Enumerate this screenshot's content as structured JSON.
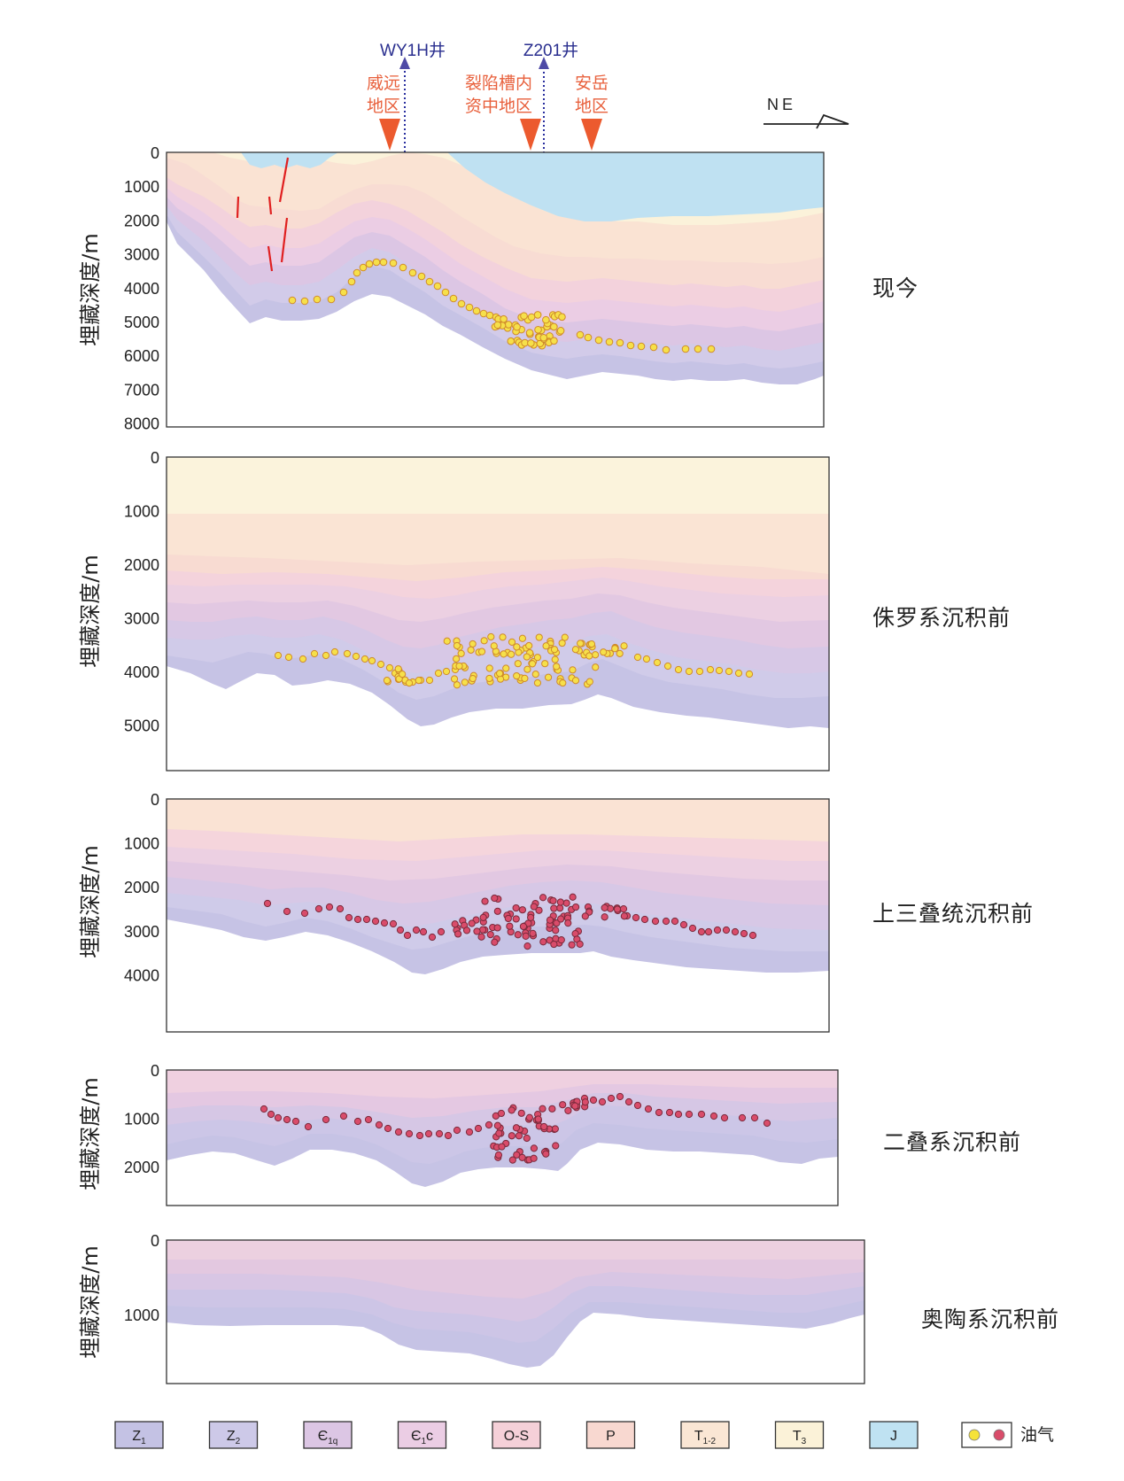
{
  "wells": [
    {
      "name": "WY1H井"
    },
    {
      "name": "Z201井"
    }
  ],
  "regions": [
    {
      "lines": [
        "威远",
        "地区"
      ]
    },
    {
      "lines": [
        "裂陷槽内",
        "资中地区"
      ]
    },
    {
      "lines": [
        "安岳",
        "地区"
      ]
    }
  ],
  "direction": "NE",
  "axis_label": "埋藏深度/m",
  "panels": [
    {
      "stage": "现今",
      "ticks": [
        "0",
        "1000",
        "2000",
        "3000",
        "4000",
        "5000",
        "6000",
        "7000",
        "8000"
      ]
    },
    {
      "stage": "侏罗系沉积前",
      "ticks": [
        "0",
        "1000",
        "2000",
        "3000",
        "4000",
        "5000"
      ]
    },
    {
      "stage": "上三叠统沉积前",
      "ticks": [
        "0",
        "1000",
        "2000",
        "3000",
        "4000"
      ]
    },
    {
      "stage": "二叠系沉积前",
      "ticks": [
        "0",
        "1000",
        "2000"
      ]
    },
    {
      "stage": "奥陶系沉积前",
      "ticks": [
        "0",
        "1000"
      ]
    }
  ],
  "legend": [
    {
      "label": "Z",
      "sub": "1",
      "color": "#c4c2e4"
    },
    {
      "label": "Z",
      "sub": "2",
      "color": "#cdc9e8"
    },
    {
      "label": "Є",
      "sub": "1q",
      "color": "#dcc6e4"
    },
    {
      "label": "Є",
      "sub": "1",
      "tail": "c",
      "color": "#ebcde4"
    },
    {
      "label": "O-S",
      "sub": "",
      "color": "#f5d0d8"
    },
    {
      "label": "P",
      "sub": "",
      "color": "#f8d8d0"
    },
    {
      "label": "T",
      "sub": "1-2",
      "color": "#fae6d4"
    },
    {
      "label": "T",
      "sub": "3",
      "color": "#fbf2d8"
    },
    {
      "label": "J",
      "sub": "",
      "color": "#bfe2f2"
    }
  ],
  "legend_oil": {
    "label": "油气",
    "colors": [
      "#f5e33a",
      "#d94c6a"
    ]
  }
}
